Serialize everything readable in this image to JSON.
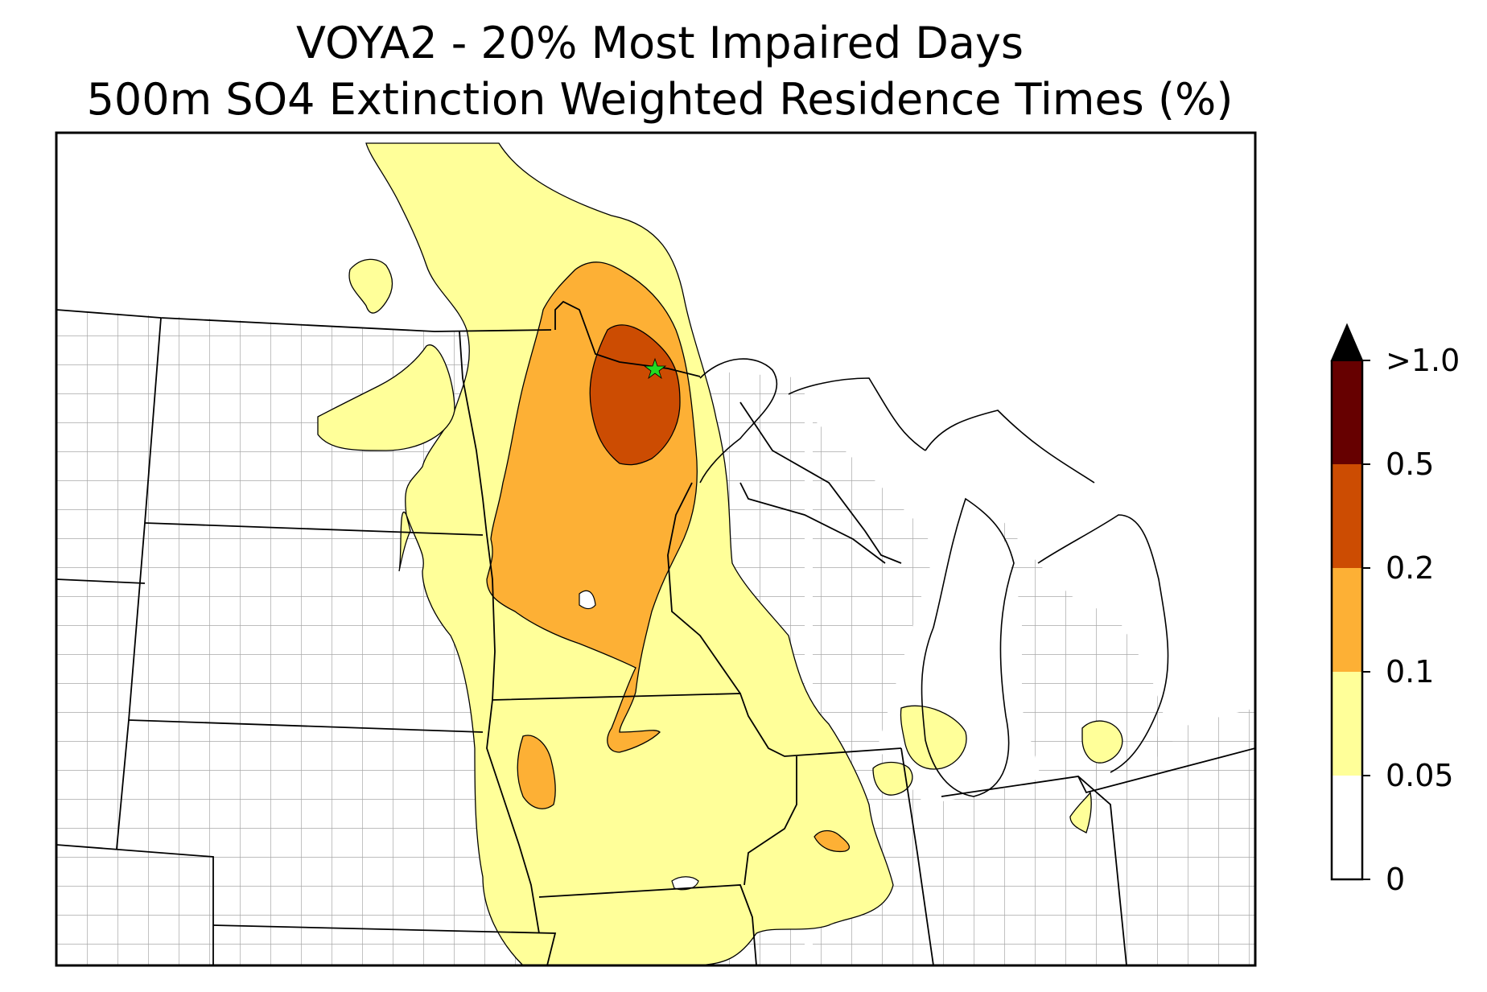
{
  "title": "VOYA2 - 20% Most Impaired Days",
  "subtitle": "500m SO4 Extinction Weighted Residence Times (%)",
  "colorbar": {
    "extend": "max",
    "bins": [
      {
        "label": "0",
        "color": "#ffffff"
      },
      {
        "label": "0.05",
        "color": "#ffff99"
      },
      {
        "label": "0.1",
        "color": "#fdb035"
      },
      {
        "label": "0.2",
        "color": "#cc4c02"
      },
      {
        "label": "0.5",
        "color": "#660000"
      },
      {
        "label": ">1.0",
        "color": "#000000"
      }
    ]
  },
  "site_marker": {
    "color": "#22dd22",
    "icon": "star-icon"
  }
}
